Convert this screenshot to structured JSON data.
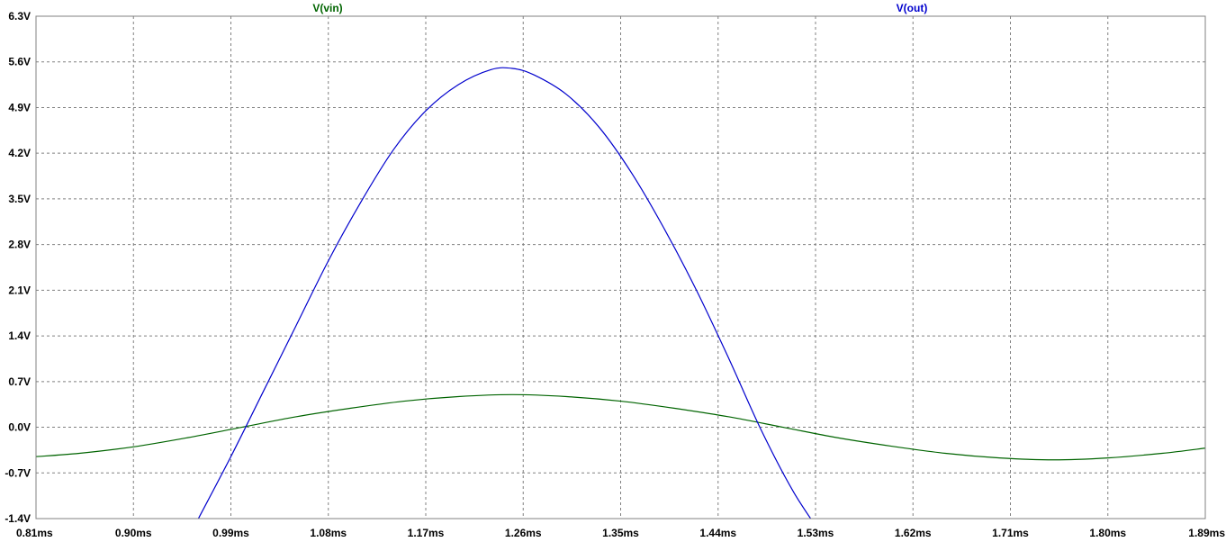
{
  "chart_data": {
    "type": "line",
    "title": "",
    "xlabel": "",
    "ylabel": "",
    "grid": true,
    "xlim": [
      0.81,
      1.89
    ],
    "ylim": [
      -1.4,
      6.3
    ],
    "x_ticks": [
      0.81,
      0.9,
      0.99,
      1.08,
      1.17,
      1.26,
      1.35,
      1.44,
      1.53,
      1.62,
      1.71,
      1.8,
      1.89
    ],
    "x_tick_labels": [
      "0.81ms",
      "0.90ms",
      "0.99ms",
      "1.08ms",
      "1.17ms",
      "1.26ms",
      "1.35ms",
      "1.44ms",
      "1.53ms",
      "1.62ms",
      "1.71ms",
      "1.80ms",
      "1.89ms"
    ],
    "y_ticks": [
      -1.4,
      -0.7,
      0.0,
      0.7,
      1.4,
      2.1,
      2.8,
      3.5,
      4.2,
      4.9,
      5.6,
      6.3
    ],
    "y_tick_labels": [
      "-1.4V",
      "-0.7V",
      "0.0V",
      "0.7V",
      "1.4V",
      "2.1V",
      "2.8V",
      "3.5V",
      "4.2V",
      "4.9V",
      "5.6V",
      "6.3V"
    ],
    "series": [
      {
        "name": "V(vin)",
        "color": "#006400",
        "x": [
          0.81,
          0.85,
          0.9,
          0.95,
          1.0,
          1.05,
          1.1,
          1.15,
          1.2,
          1.25,
          1.3,
          1.35,
          1.4,
          1.45,
          1.5,
          1.55,
          1.6,
          1.65,
          1.7,
          1.75,
          1.8,
          1.85,
          1.89
        ],
        "values": [
          -0.45,
          -0.4,
          -0.3,
          -0.16,
          0.0,
          0.16,
          0.29,
          0.4,
          0.47,
          0.5,
          0.47,
          0.4,
          0.29,
          0.16,
          0.0,
          -0.16,
          -0.29,
          -0.4,
          -0.47,
          -0.5,
          -0.47,
          -0.4,
          -0.32
        ]
      },
      {
        "name": "V(out)",
        "color": "#0000cd",
        "x": [
          0.96,
          0.99,
          1.02,
          1.05,
          1.08,
          1.11,
          1.14,
          1.17,
          1.2,
          1.23,
          1.25,
          1.27,
          1.3,
          1.33,
          1.36,
          1.39,
          1.42,
          1.45,
          1.48,
          1.51,
          1.54
        ],
        "values": [
          -1.4,
          -0.45,
          0.55,
          1.55,
          2.55,
          3.45,
          4.25,
          4.85,
          5.25,
          5.48,
          5.5,
          5.4,
          5.1,
          4.6,
          3.9,
          3.05,
          2.1,
          1.05,
          -0.05,
          -1.0,
          -1.75
        ]
      }
    ],
    "legend": [
      "V(vin)",
      "V(out)"
    ],
    "legend_placement": "top"
  }
}
